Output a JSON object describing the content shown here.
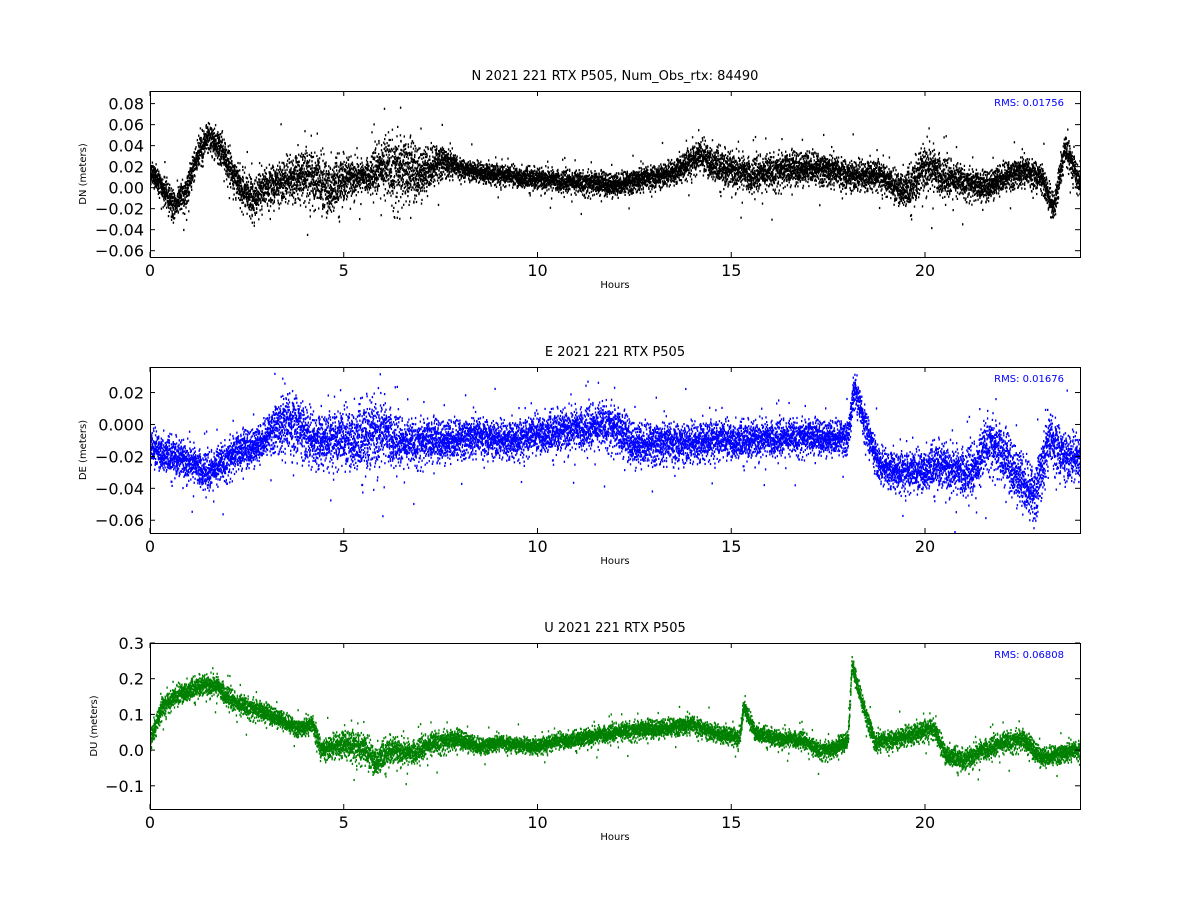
{
  "chart_data": [
    {
      "id": "north",
      "type": "scatter",
      "title": "N 2021 221 RTX  P505, Num_Obs_rtx: 84490",
      "xlabel": "Hours",
      "ylabel": "DN (meters)",
      "rms_label": "RMS:  0.01756",
      "color": "#000000",
      "xlim": [
        0,
        24
      ],
      "ylim": [
        -0.066,
        0.092
      ],
      "xticks": [
        0,
        5,
        10,
        15,
        20
      ],
      "xtick_labels": [
        "0",
        "5",
        "10",
        "15",
        "20"
      ],
      "yticks": [
        -0.06,
        -0.04,
        -0.02,
        0.0,
        0.02,
        0.04,
        0.06,
        0.08
      ],
      "ytick_labels": [
        "−0.06",
        "−0.04",
        "−0.02",
        "0.00",
        "0.02",
        "0.04",
        "0.06",
        "0.08"
      ],
      "grid": false,
      "trend": [
        [
          0,
          0.015
        ],
        [
          0.3,
          0.0
        ],
        [
          0.6,
          -0.018
        ],
        [
          0.9,
          -0.005
        ],
        [
          1.2,
          0.03
        ],
        [
          1.5,
          0.048
        ],
        [
          1.8,
          0.038
        ],
        [
          2.1,
          0.015
        ],
        [
          2.4,
          -0.005
        ],
        [
          2.7,
          -0.01
        ],
        [
          3.0,
          0.0
        ],
        [
          3.5,
          0.008
        ],
        [
          4.0,
          0.012
        ],
        [
          4.3,
          0.005
        ],
        [
          4.6,
          0.0
        ],
        [
          5.0,
          0.008
        ],
        [
          5.5,
          0.01
        ],
        [
          6.0,
          0.02
        ],
        [
          6.5,
          0.015
        ],
        [
          7.0,
          0.015
        ],
        [
          7.5,
          0.025
        ],
        [
          8.0,
          0.018
        ],
        [
          9.0,
          0.012
        ],
        [
          10.0,
          0.008
        ],
        [
          11.0,
          0.005
        ],
        [
          12.0,
          0.003
        ],
        [
          13.0,
          0.01
        ],
        [
          13.5,
          0.015
        ],
        [
          14.2,
          0.03
        ],
        [
          14.8,
          0.018
        ],
        [
          15.5,
          0.012
        ],
        [
          16.0,
          0.015
        ],
        [
          17.0,
          0.02
        ],
        [
          18.0,
          0.012
        ],
        [
          18.8,
          0.012
        ],
        [
          19.2,
          0.0
        ],
        [
          19.6,
          0.0
        ],
        [
          20.0,
          0.02
        ],
        [
          20.5,
          0.01
        ],
        [
          21.0,
          0.005
        ],
        [
          21.5,
          0.0
        ],
        [
          22.0,
          0.01
        ],
        [
          22.5,
          0.015
        ],
        [
          23.0,
          0.01
        ],
        [
          23.3,
          -0.02
        ],
        [
          23.6,
          0.038
        ],
        [
          23.8,
          0.02
        ],
        [
          24.0,
          0.0
        ]
      ],
      "noise": [
        [
          0,
          0.01
        ],
        [
          3.5,
          0.018
        ],
        [
          4.5,
          0.025
        ],
        [
          5.5,
          0.012
        ],
        [
          6.3,
          0.03
        ],
        [
          7.2,
          0.018
        ],
        [
          8.0,
          0.008
        ],
        [
          13.5,
          0.01
        ],
        [
          14.5,
          0.015
        ],
        [
          19.0,
          0.012
        ],
        [
          20.0,
          0.02
        ],
        [
          21.0,
          0.012
        ],
        [
          24.0,
          0.012
        ]
      ]
    },
    {
      "id": "east",
      "type": "scatter",
      "title": "E 2021 221 RTX  P505",
      "xlabel": "Hours",
      "ylabel": "DE (meters)",
      "rms_label": "RMS:  0.01676",
      "color": "#0000ff",
      "xlim": [
        0,
        24
      ],
      "ylim": [
        -0.068,
        0.036
      ],
      "xticks": [
        0,
        5,
        10,
        15,
        20
      ],
      "xtick_labels": [
        "0",
        "5",
        "10",
        "15",
        "20"
      ],
      "yticks": [
        -0.06,
        -0.04,
        -0.02,
        0.0,
        0.02
      ],
      "ytick_labels": [
        "−0.06",
        "−0.04",
        "−0.02",
        "0.000",
        "0.02"
      ],
      "grid": false,
      "trend": [
        [
          0,
          -0.015
        ],
        [
          0.8,
          -0.022
        ],
        [
          1.5,
          -0.03
        ],
        [
          2.2,
          -0.018
        ],
        [
          2.8,
          -0.012
        ],
        [
          3.2,
          -0.002
        ],
        [
          3.8,
          0.0
        ],
        [
          4.2,
          -0.01
        ],
        [
          4.8,
          -0.01
        ],
        [
          5.5,
          -0.008
        ],
        [
          6.0,
          -0.005
        ],
        [
          6.5,
          -0.012
        ],
        [
          7.5,
          -0.01
        ],
        [
          8.5,
          -0.008
        ],
        [
          9.5,
          -0.01
        ],
        [
          10.0,
          -0.006
        ],
        [
          11.0,
          -0.003
        ],
        [
          11.8,
          0.0
        ],
        [
          12.5,
          -0.012
        ],
        [
          13.5,
          -0.012
        ],
        [
          14.5,
          -0.01
        ],
        [
          15.5,
          -0.01
        ],
        [
          16.5,
          -0.008
        ],
        [
          17.5,
          -0.008
        ],
        [
          18.0,
          -0.008
        ],
        [
          18.15,
          0.022
        ],
        [
          18.5,
          -0.005
        ],
        [
          18.8,
          -0.025
        ],
        [
          19.3,
          -0.03
        ],
        [
          19.8,
          -0.03
        ],
        [
          20.3,
          -0.025
        ],
        [
          20.8,
          -0.03
        ],
        [
          21.3,
          -0.028
        ],
        [
          21.6,
          -0.01
        ],
        [
          22.0,
          -0.02
        ],
        [
          22.5,
          -0.035
        ],
        [
          22.8,
          -0.045
        ],
        [
          23.2,
          -0.01
        ],
        [
          23.6,
          -0.02
        ],
        [
          24.0,
          -0.02
        ]
      ],
      "noise": [
        [
          0,
          0.01
        ],
        [
          3.0,
          0.01
        ],
        [
          3.5,
          0.018
        ],
        [
          4.5,
          0.014
        ],
        [
          5.8,
          0.02
        ],
        [
          6.5,
          0.012
        ],
        [
          9.0,
          0.01
        ],
        [
          12.0,
          0.012
        ],
        [
          17.0,
          0.009
        ],
        [
          19.0,
          0.01
        ],
        [
          21.5,
          0.014
        ],
        [
          23.0,
          0.016
        ],
        [
          24.0,
          0.012
        ]
      ]
    },
    {
      "id": "up",
      "type": "scatter",
      "title": "U 2021 221 RTX  P505",
      "xlabel": "Hours",
      "ylabel": "DU (meters)",
      "rms_label": "RMS:  0.06808",
      "color": "#008000",
      "xlim": [
        0,
        24
      ],
      "ylim": [
        -0.165,
        0.3
      ],
      "xticks": [
        0,
        5,
        10,
        15,
        20
      ],
      "xtick_labels": [
        "0",
        "5",
        "10",
        "15",
        "20"
      ],
      "yticks": [
        -0.1,
        0.0,
        0.1,
        0.2,
        0.3
      ],
      "ytick_labels": [
        "−0.1",
        "0.0",
        "0.1",
        "0.2",
        "0.3"
      ],
      "grid": false,
      "trend": [
        [
          0,
          0.03
        ],
        [
          0.3,
          0.12
        ],
        [
          0.8,
          0.16
        ],
        [
          1.3,
          0.18
        ],
        [
          1.7,
          0.18
        ],
        [
          2.2,
          0.13
        ],
        [
          2.8,
          0.11
        ],
        [
          3.3,
          0.09
        ],
        [
          3.8,
          0.06
        ],
        [
          4.2,
          0.07
        ],
        [
          4.4,
          0.0
        ],
        [
          5.0,
          0.02
        ],
        [
          5.5,
          0.0
        ],
        [
          5.8,
          -0.03
        ],
        [
          6.2,
          0.0
        ],
        [
          6.7,
          -0.01
        ],
        [
          7.3,
          0.02
        ],
        [
          8.0,
          0.03
        ],
        [
          8.5,
          0.01
        ],
        [
          9.0,
          0.02
        ],
        [
          9.5,
          0.015
        ],
        [
          10.0,
          0.01
        ],
        [
          10.5,
          0.025
        ],
        [
          11.0,
          0.03
        ],
        [
          12.0,
          0.05
        ],
        [
          13.0,
          0.06
        ],
        [
          14.0,
          0.07
        ],
        [
          14.5,
          0.05
        ],
        [
          15.0,
          0.04
        ],
        [
          15.2,
          0.03
        ],
        [
          15.3,
          0.12
        ],
        [
          15.6,
          0.05
        ],
        [
          16.2,
          0.03
        ],
        [
          16.8,
          0.03
        ],
        [
          17.2,
          0.0
        ],
        [
          17.6,
          0.0
        ],
        [
          18.0,
          0.03
        ],
        [
          18.1,
          0.24
        ],
        [
          18.4,
          0.12
        ],
        [
          18.7,
          0.02
        ],
        [
          19.2,
          0.03
        ],
        [
          19.8,
          0.05
        ],
        [
          20.2,
          0.06
        ],
        [
          20.5,
          -0.01
        ],
        [
          21.0,
          -0.03
        ],
        [
          21.5,
          0.0
        ],
        [
          22.0,
          0.02
        ],
        [
          22.5,
          0.03
        ],
        [
          23.0,
          -0.02
        ],
        [
          23.5,
          -0.01
        ],
        [
          24.0,
          0.0
        ]
      ],
      "noise": [
        [
          0,
          0.025
        ],
        [
          2.0,
          0.025
        ],
        [
          4.0,
          0.02
        ],
        [
          5.5,
          0.04
        ],
        [
          6.5,
          0.03
        ],
        [
          9.0,
          0.018
        ],
        [
          13.0,
          0.022
        ],
        [
          17.0,
          0.02
        ],
        [
          20.0,
          0.025
        ],
        [
          22.0,
          0.025
        ],
        [
          24.0,
          0.022
        ]
      ]
    }
  ]
}
